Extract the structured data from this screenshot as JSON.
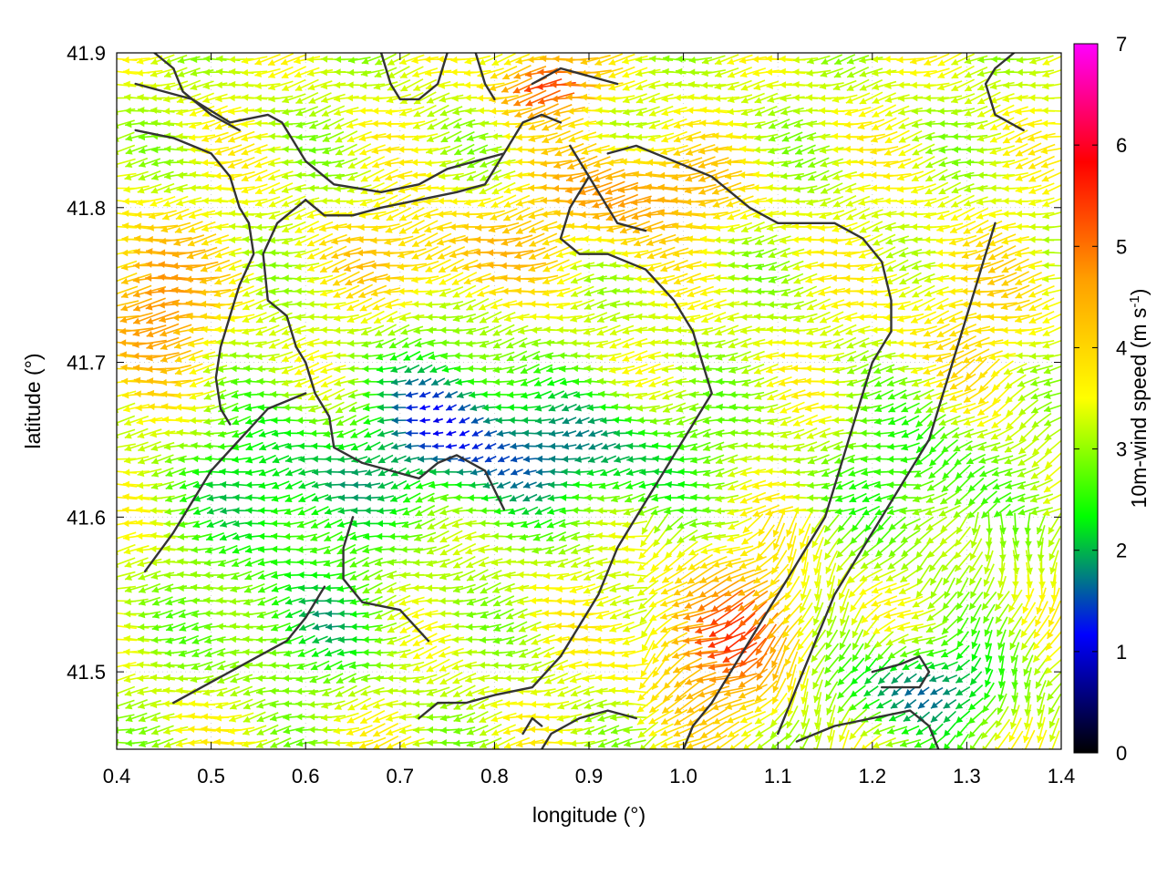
{
  "chart_data": {
    "type": "vector-field",
    "xlabel": "longitude (°)",
    "ylabel": "latitude (°)",
    "xlim": [
      0.4,
      1.4
    ],
    "ylim": [
      41.45,
      41.9
    ],
    "xticks": [
      "0.4",
      "0.5",
      "0.6",
      "0.7",
      "0.8",
      "0.9",
      "1.0",
      "1.1",
      "1.2",
      "1.3",
      "1.4"
    ],
    "yticks": [
      "41.5",
      "41.6",
      "41.7",
      "41.8",
      "41.9"
    ],
    "colorbar": {
      "label_main": "10m-wind speed (m s",
      "label_sup": "-1",
      "label_close": ")",
      "range": [
        0,
        7
      ],
      "ticks": [
        "0",
        "1",
        "2",
        "3",
        "4",
        "5",
        "6",
        "7"
      ],
      "stops": [
        "#000000",
        "#0000ff",
        "#00ff00",
        "#ffff00",
        "#ffa000",
        "#ff0000",
        "#ff00ff"
      ]
    },
    "coastlines": [
      [
        [
          0.42,
          41.88
        ],
        [
          0.48,
          41.87
        ],
        [
          0.52,
          41.855
        ],
        [
          0.56,
          41.86
        ],
        [
          0.575,
          41.855
        ],
        [
          0.6,
          41.83
        ],
        [
          0.63,
          41.815
        ],
        [
          0.68,
          41.81
        ],
        [
          0.72,
          41.815
        ],
        [
          0.75,
          41.825
        ],
        [
          0.78,
          41.83
        ],
        [
          0.81,
          41.835
        ],
        [
          0.83,
          41.855
        ],
        [
          0.85,
          41.86
        ],
        [
          0.87,
          41.855
        ]
      ],
      [
        [
          0.42,
          41.85
        ],
        [
          0.46,
          41.845
        ],
        [
          0.5,
          41.835
        ],
        [
          0.52,
          41.82
        ],
        [
          0.53,
          41.8
        ],
        [
          0.54,
          41.79
        ],
        [
          0.545,
          41.77
        ],
        [
          0.53,
          41.75
        ],
        [
          0.52,
          41.73
        ],
        [
          0.51,
          41.71
        ],
        [
          0.505,
          41.69
        ],
        [
          0.51,
          41.67
        ],
        [
          0.52,
          41.66
        ]
      ],
      [
        [
          0.44,
          41.9
        ],
        [
          0.46,
          41.89
        ],
        [
          0.47,
          41.875
        ],
        [
          0.5,
          41.86
        ],
        [
          0.53,
          41.85
        ]
      ],
      [
        [
          0.6,
          41.805
        ],
        [
          0.57,
          41.79
        ],
        [
          0.555,
          41.77
        ],
        [
          0.56,
          41.74
        ],
        [
          0.58,
          41.73
        ],
        [
          0.59,
          41.71
        ],
        [
          0.6,
          41.7
        ],
        [
          0.61,
          41.68
        ],
        [
          0.625,
          41.665
        ],
        [
          0.63,
          41.645
        ],
        [
          0.66,
          41.635
        ],
        [
          0.69,
          41.63
        ],
        [
          0.72,
          41.625
        ],
        [
          0.74,
          41.635
        ],
        [
          0.76,
          41.64
        ],
        [
          0.79,
          41.63
        ],
        [
          0.81,
          41.605
        ]
      ],
      [
        [
          0.6,
          41.805
        ],
        [
          0.62,
          41.795
        ],
        [
          0.65,
          41.795
        ],
        [
          0.68,
          41.8
        ],
        [
          0.72,
          41.805
        ],
        [
          0.76,
          41.81
        ],
        [
          0.79,
          41.815
        ],
        [
          0.81,
          41.835
        ]
      ],
      [
        [
          0.92,
          41.835
        ],
        [
          0.95,
          41.84
        ],
        [
          0.99,
          41.83
        ],
        [
          1.03,
          41.82
        ],
        [
          1.07,
          41.8
        ],
        [
          1.1,
          41.79
        ],
        [
          1.13,
          41.79
        ],
        [
          1.16,
          41.79
        ],
        [
          1.19,
          41.78
        ],
        [
          1.21,
          41.765
        ],
        [
          1.22,
          41.74
        ],
        [
          1.22,
          41.72
        ]
      ],
      [
        [
          0.88,
          41.84
        ],
        [
          0.9,
          41.82
        ],
        [
          0.92,
          41.8
        ],
        [
          0.93,
          41.79
        ],
        [
          0.96,
          41.785
        ]
      ],
      [
        [
          0.9,
          41.82
        ],
        [
          0.88,
          41.8
        ],
        [
          0.87,
          41.78
        ],
        [
          0.89,
          41.77
        ],
        [
          0.92,
          41.77
        ],
        [
          0.96,
          41.76
        ],
        [
          0.99,
          41.74
        ],
        [
          1.01,
          41.72
        ],
        [
          1.02,
          41.7
        ],
        [
          1.03,
          41.68
        ],
        [
          1.01,
          41.66
        ],
        [
          0.99,
          41.64
        ],
        [
          0.97,
          41.62
        ],
        [
          0.95,
          41.6
        ],
        [
          0.93,
          41.58
        ],
        [
          0.91,
          41.55
        ],
        [
          0.89,
          41.53
        ],
        [
          0.87,
          41.51
        ],
        [
          0.84,
          41.49
        ],
        [
          0.8,
          41.485
        ],
        [
          0.77,
          41.48
        ],
        [
          0.74,
          41.48
        ],
        [
          0.72,
          41.47
        ]
      ],
      [
        [
          1.22,
          41.72
        ],
        [
          1.2,
          41.7
        ],
        [
          1.19,
          41.68
        ],
        [
          1.18,
          41.66
        ],
        [
          1.17,
          41.64
        ],
        [
          1.16,
          41.62
        ],
        [
          1.15,
          41.6
        ],
        [
          1.13,
          41.58
        ],
        [
          1.11,
          41.56
        ],
        [
          1.09,
          41.54
        ],
        [
          1.07,
          41.52
        ],
        [
          1.05,
          41.5
        ],
        [
          1.03,
          41.48
        ],
        [
          1.01,
          41.465
        ],
        [
          1.0,
          41.45
        ]
      ],
      [
        [
          1.33,
          41.79
        ],
        [
          1.32,
          41.77
        ],
        [
          1.31,
          41.75
        ],
        [
          1.3,
          41.73
        ],
        [
          1.29,
          41.71
        ],
        [
          1.28,
          41.69
        ],
        [
          1.27,
          41.67
        ],
        [
          1.26,
          41.65
        ],
        [
          1.24,
          41.63
        ],
        [
          1.22,
          41.61
        ],
        [
          1.2,
          41.59
        ],
        [
          1.18,
          41.57
        ],
        [
          1.16,
          41.55
        ],
        [
          1.14,
          41.52
        ],
        [
          1.12,
          41.49
        ],
        [
          1.1,
          41.46
        ]
      ],
      [
        [
          0.62,
          41.555
        ],
        [
          0.6,
          41.535
        ],
        [
          0.58,
          41.52
        ],
        [
          0.55,
          41.51
        ],
        [
          0.52,
          41.5
        ],
        [
          0.49,
          41.49
        ],
        [
          0.46,
          41.48
        ]
      ],
      [
        [
          0.43,
          41.565
        ],
        [
          0.46,
          41.59
        ],
        [
          0.48,
          41.61
        ],
        [
          0.5,
          41.63
        ],
        [
          0.53,
          41.65
        ],
        [
          0.56,
          41.67
        ],
        [
          0.6,
          41.68
        ]
      ],
      [
        [
          0.65,
          41.6
        ],
        [
          0.64,
          41.58
        ],
        [
          0.64,
          41.56
        ],
        [
          0.66,
          41.545
        ],
        [
          0.7,
          41.54
        ],
        [
          0.73,
          41.52
        ]
      ],
      [
        [
          1.2,
          41.5
        ],
        [
          1.23,
          41.505
        ],
        [
          1.25,
          41.51
        ],
        [
          1.26,
          41.5
        ],
        [
          1.25,
          41.49
        ],
        [
          1.21,
          41.49
        ]
      ],
      [
        [
          1.12,
          41.455
        ],
        [
          1.16,
          41.465
        ],
        [
          1.2,
          41.47
        ],
        [
          1.24,
          41.475
        ],
        [
          1.26,
          41.465
        ],
        [
          1.27,
          41.45
        ]
      ],
      [
        [
          0.84,
          41.88
        ],
        [
          0.87,
          41.89
        ],
        [
          0.9,
          41.885
        ],
        [
          0.93,
          41.88
        ]
      ],
      [
        [
          1.35,
          41.9
        ],
        [
          1.33,
          41.89
        ],
        [
          1.32,
          41.88
        ],
        [
          1.33,
          41.86
        ],
        [
          1.36,
          41.85
        ]
      ],
      [
        [
          0.78,
          41.9
        ],
        [
          0.79,
          41.88
        ],
        [
          0.8,
          41.87
        ]
      ],
      [
        [
          0.68,
          41.9
        ],
        [
          0.69,
          41.88
        ],
        [
          0.7,
          41.87
        ],
        [
          0.72,
          41.87
        ],
        [
          0.74,
          41.88
        ],
        [
          0.75,
          41.9
        ]
      ],
      [
        [
          0.83,
          41.46
        ],
        [
          0.84,
          41.47
        ],
        [
          0.85,
          41.465
        ]
      ],
      [
        [
          0.85,
          41.45
        ],
        [
          0.86,
          41.46
        ],
        [
          0.89,
          41.47
        ],
        [
          0.92,
          41.475
        ],
        [
          0.95,
          41.47
        ]
      ]
    ]
  }
}
